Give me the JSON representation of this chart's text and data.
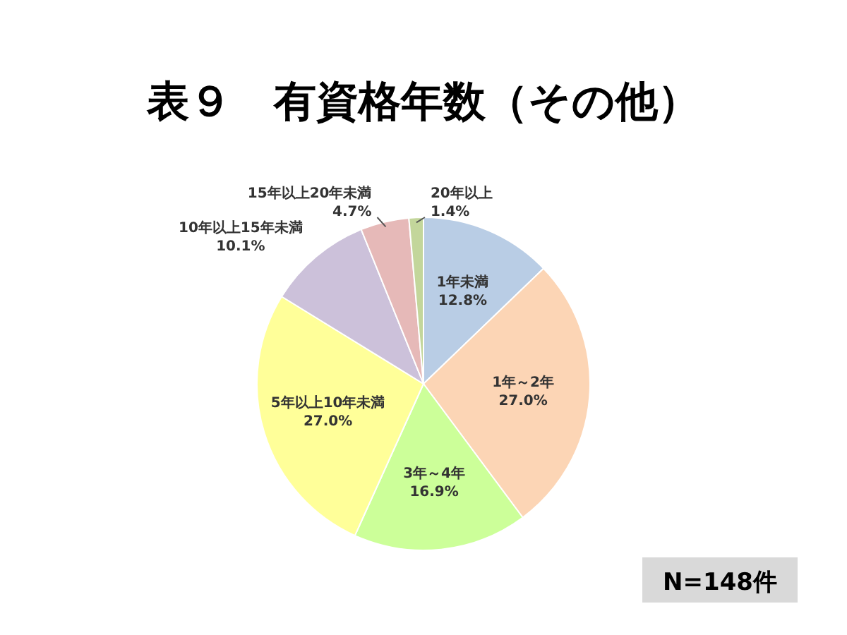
{
  "chart_data": {
    "type": "pie",
    "title": "表９　有資格年数（その他）",
    "categories": [
      "1年未満",
      "1年～2年",
      "3年～4年",
      "5年以上10年未満",
      "10年以上15年未満",
      "15年以上20年未満",
      "20年以上"
    ],
    "values": [
      12.8,
      27.0,
      16.9,
      27.0,
      10.1,
      4.7,
      1.4
    ],
    "value_labels": [
      "12.8%",
      "27.0%",
      "16.9%",
      "27.0%",
      "10.1%",
      "4.7%",
      "1.4%"
    ],
    "colors": [
      "#b9cde5",
      "#fcd5b5",
      "#ccff99",
      "#ffff99",
      "#ccc1da",
      "#e6b9b8",
      "#c3d69b"
    ],
    "annotations": [
      "N=148件"
    ]
  }
}
